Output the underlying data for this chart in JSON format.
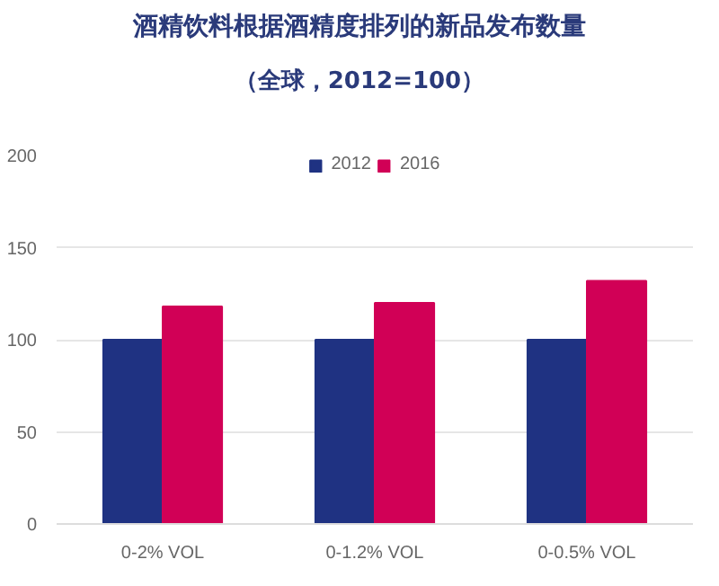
{
  "chart_data": {
    "type": "bar",
    "title": "酒精饮料根据酒精度排列的新品发布数量",
    "subtitle": "（全球，2012=100）",
    "categories": [
      "0-2% VOL",
      "0-1.2% VOL",
      "0-0.5% VOL"
    ],
    "series": [
      {
        "name": "2012",
        "color": "#1f3282",
        "values": [
          100,
          100,
          100
        ]
      },
      {
        "name": "2016",
        "color": "#d10056",
        "values": [
          118,
          120,
          132
        ]
      }
    ],
    "ylim": [
      0,
      200
    ],
    "yticks": [
      0,
      50,
      100,
      150,
      200
    ],
    "grid": "y",
    "legend": "top"
  }
}
